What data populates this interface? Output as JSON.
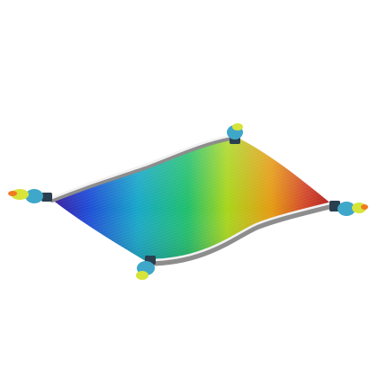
{
  "object": {
    "name": "flying carpet",
    "tassel_count": 4
  },
  "colors": {
    "background": "#ffffff",
    "gradient_stops": [
      "#3a1f9e",
      "#1e4bd6",
      "#16a7c8",
      "#1fbf6a",
      "#a8d51a",
      "#e59a12",
      "#d2472a",
      "#b01a1a"
    ],
    "trim_light": "#f2f2f2",
    "trim_dark": "#8d8d8d",
    "tassel_cap": "#3fa7c9",
    "tassel_ring": "#2a3f4f",
    "tassel_tip": "#d7e43a"
  }
}
